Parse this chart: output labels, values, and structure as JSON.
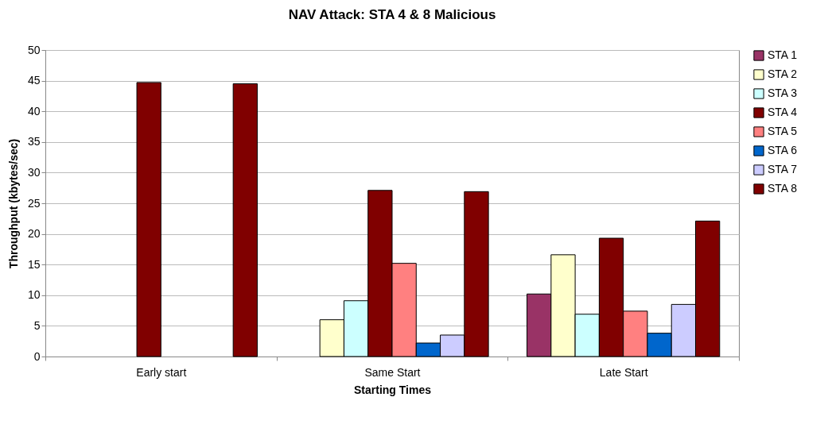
{
  "chart_data": {
    "type": "bar",
    "title": "NAV Attack: STA 4 & 8 Malicious",
    "xlabel": "Starting Times",
    "ylabel": "Throughput (kbytes/sec)",
    "categories": [
      "Early start",
      "Same Start",
      "Late Start"
    ],
    "series": [
      {
        "name": "STA 1",
        "color": "#993366",
        "values": [
          null,
          null,
          10.2
        ]
      },
      {
        "name": "STA 2",
        "color": "#ffffcc",
        "values": [
          null,
          6.0,
          16.6
        ]
      },
      {
        "name": "STA 3",
        "color": "#ccffff",
        "values": [
          null,
          9.1,
          6.9
        ]
      },
      {
        "name": "STA 4",
        "color": "#800000",
        "values": [
          44.7,
          27.1,
          19.3
        ]
      },
      {
        "name": "STA 5",
        "color": "#ff8080",
        "values": [
          null,
          15.2,
          7.4
        ]
      },
      {
        "name": "STA 6",
        "color": "#0066cc",
        "values": [
          null,
          2.2,
          3.8
        ]
      },
      {
        "name": "STA 7",
        "color": "#ccccff",
        "values": [
          null,
          3.5,
          8.5
        ]
      },
      {
        "name": "STA 8",
        "color": "#800000",
        "values": [
          44.5,
          26.9,
          22.1
        ]
      }
    ],
    "ylim": [
      0,
      50
    ],
    "yticks": [
      0,
      5,
      10,
      15,
      20,
      25,
      30,
      35,
      40,
      45,
      50
    ],
    "grid": "y",
    "legend": "right"
  }
}
